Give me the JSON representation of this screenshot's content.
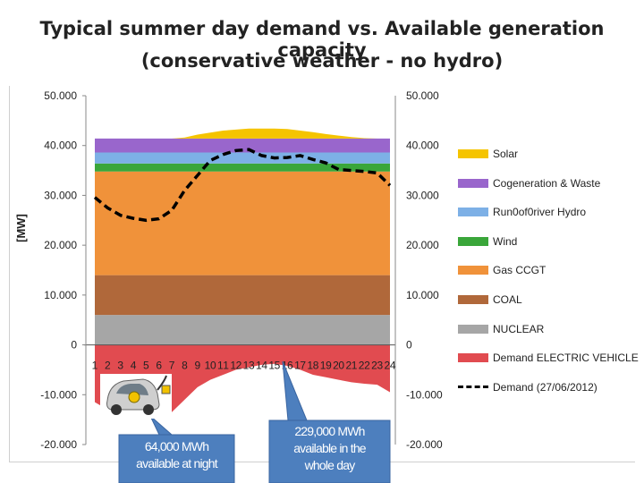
{
  "title_line1": "Typical summer day demand vs. Available generation capacity",
  "title_line2": "(conservative weather - no hydro)",
  "chart_data": {
    "type": "area",
    "title": "Typical summer day demand vs. Available generation capacity (conservative weather - no hydro)",
    "ylabel": "[MW]",
    "xlabel": "",
    "ylim": [
      -20000,
      50000
    ],
    "y_ticks": [
      "50.000",
      "40.000",
      "30.000",
      "20.000",
      "10.000",
      "0",
      "-10.000",
      "-20.000"
    ],
    "y_tick_values": [
      50000,
      40000,
      30000,
      20000,
      10000,
      0,
      -10000,
      -20000
    ],
    "categories": [
      "1",
      "2",
      "3",
      "4",
      "5",
      "6",
      "7",
      "8",
      "9",
      "10",
      "11",
      "12",
      "13",
      "14",
      "15",
      "16",
      "17",
      "18",
      "19",
      "20",
      "21",
      "22",
      "23",
      "24"
    ],
    "series": [
      {
        "name": "NUCLEAR",
        "kind": "stack",
        "color": "#a6a6a6",
        "values": [
          6000,
          6000,
          6000,
          6000,
          6000,
          6000,
          6000,
          6000,
          6000,
          6000,
          6000,
          6000,
          6000,
          6000,
          6000,
          6000,
          6000,
          6000,
          6000,
          6000,
          6000,
          6000,
          6000,
          6000
        ]
      },
      {
        "name": "COAL",
        "kind": "stack",
        "color": "#b0683a",
        "values": [
          8000,
          8000,
          8000,
          8000,
          8000,
          8000,
          8000,
          8000,
          8000,
          8000,
          8000,
          8000,
          8000,
          8000,
          8000,
          8000,
          8000,
          8000,
          8000,
          8000,
          8000,
          8000,
          8000,
          8000
        ]
      },
      {
        "name": "Gas CCGT",
        "kind": "stack",
        "color": "#f0923a",
        "values": [
          20800,
          20800,
          20800,
          20800,
          20800,
          20800,
          20800,
          20800,
          20800,
          20800,
          20800,
          20800,
          20800,
          20800,
          20800,
          20800,
          20800,
          20800,
          20800,
          20800,
          20800,
          20800,
          20800,
          20800
        ]
      },
      {
        "name": "Wind",
        "kind": "stack",
        "color": "#3aa63a",
        "values": [
          1600,
          1600,
          1600,
          1600,
          1600,
          1600,
          1600,
          1600,
          1600,
          1600,
          1600,
          1600,
          1600,
          1600,
          1600,
          1600,
          1600,
          1600,
          1600,
          1600,
          1600,
          1600,
          1600,
          1600
        ]
      },
      {
        "name": "Run0of0river Hydro",
        "kind": "stack",
        "color": "#7db0e6",
        "values": [
          2200,
          2200,
          2200,
          2200,
          2200,
          2200,
          2200,
          2200,
          2200,
          2200,
          2200,
          2200,
          2200,
          2200,
          2200,
          2200,
          2200,
          2200,
          2200,
          2200,
          2200,
          2200,
          2200,
          2200
        ]
      },
      {
        "name": "Cogeneration & Waste",
        "kind": "stack",
        "color": "#9966cc",
        "values": [
          2800,
          2800,
          2800,
          2800,
          2800,
          2800,
          2800,
          2800,
          2800,
          2800,
          2800,
          2800,
          2800,
          2800,
          2800,
          2800,
          2800,
          2800,
          2800,
          2800,
          2800,
          2800,
          2800,
          2800
        ]
      },
      {
        "name": "Solar",
        "kind": "stack",
        "color": "#f5c400",
        "values": [
          0,
          0,
          0,
          0,
          0,
          0,
          0,
          200,
          800,
          1200,
          1600,
          1800,
          2000,
          2000,
          2000,
          1900,
          1600,
          1300,
          900,
          600,
          300,
          100,
          0,
          0
        ]
      },
      {
        "name": "Demand ELECTRIC VEHICLE",
        "kind": "negative",
        "color": "#e14b50",
        "values": [
          -11500,
          -13000,
          -14000,
          -14500,
          -14500,
          -14500,
          -13500,
          -11000,
          -8500,
          -7000,
          -6000,
          -5000,
          -4500,
          -4000,
          -3800,
          -4200,
          -5000,
          -6000,
          -6500,
          -7000,
          -7500,
          -7800,
          -8000,
          -9500
        ]
      },
      {
        "name": "Demand (27/06/2012)",
        "kind": "line",
        "color": "#000000",
        "values": [
          29600,
          27500,
          26000,
          25400,
          25000,
          25300,
          27000,
          31000,
          34000,
          37000,
          38200,
          39000,
          39200,
          38000,
          37500,
          37600,
          38000,
          37200,
          36500,
          35200,
          35000,
          34800,
          34500,
          32000
        ]
      }
    ],
    "annotations": [
      {
        "text": "64,000 MWh available at night"
      },
      {
        "text": "229,000 MWh available in the whole day"
      }
    ]
  },
  "legend": [
    {
      "label": "Solar",
      "color": "#f5c400",
      "style": "fill"
    },
    {
      "label": "Cogeneration & Waste",
      "color": "#9966cc",
      "style": "fill"
    },
    {
      "label": "Run0of0river Hydro",
      "color": "#7db0e6",
      "style": "fill"
    },
    {
      "label": "Wind",
      "color": "#3aa63a",
      "style": "fill"
    },
    {
      "label": "Gas CCGT",
      "color": "#f0923a",
      "style": "fill"
    },
    {
      "label": "COAL",
      "color": "#b0683a",
      "style": "fill"
    },
    {
      "label": "NUCLEAR",
      "color": "#a6a6a6",
      "style": "fill"
    },
    {
      "label": "Demand ELECTRIC VEHICLE",
      "color": "#e14b50",
      "style": "fill"
    },
    {
      "label": "Demand (27/06/2012)",
      "color": "#000000",
      "style": "dash"
    }
  ],
  "callouts": {
    "night_line1": "64,000 MWh",
    "night_line2": "available at night",
    "day_line1": "229,000 MWh",
    "day_line2": "available in the",
    "day_line3": "whole day"
  },
  "icons": {
    "ev_car": "electric-car-icon"
  }
}
